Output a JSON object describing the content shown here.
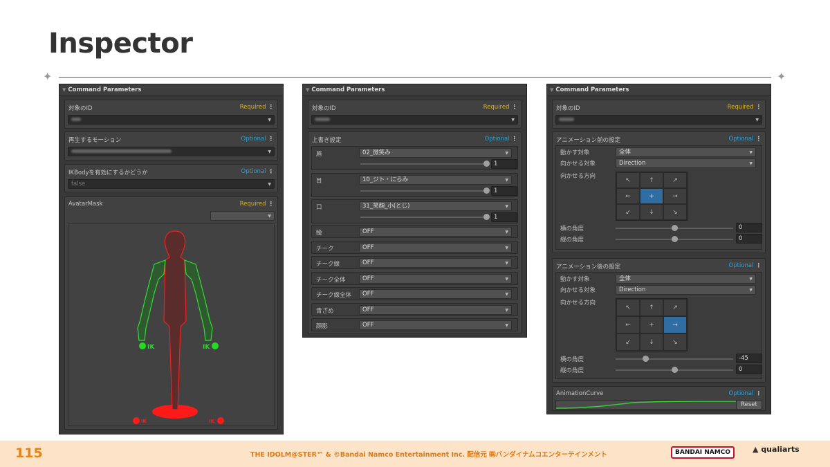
{
  "slide": {
    "title": "Inspector",
    "page_number": "115",
    "copyright": "THE IDOLM@STER™ & ©Bandai Namco Entertainment Inc. 配信元 ㈱バンダイナムコエンターテインメント",
    "logo_bandai": "BANDAI NAMCO",
    "logo_qualiarts": "qualiarts"
  },
  "left": {
    "header": "Command Parameters",
    "fields": [
      {
        "label": "対象のID",
        "tag": "Required"
      },
      {
        "label": "再生するモーション",
        "tag": "Optional"
      },
      {
        "label": "IKBodyを有効にするかどうか",
        "tag": "Optional",
        "value": "false"
      },
      {
        "label": "AvatarMask",
        "tag": "Required"
      }
    ],
    "ik_labels": {
      "left_hand": "IK",
      "right_hand": "IK",
      "left_foot": "IK",
      "right_foot": "IK"
    }
  },
  "middle": {
    "header": "Command Parameters",
    "target": {
      "label": "対象のID",
      "tag": "Required"
    },
    "override": {
      "label": "上書き設定",
      "tag": "Optional",
      "sliders": [
        {
          "label": "眉",
          "value": "02_微笑み",
          "weight": "1"
        },
        {
          "label": "目",
          "value": "10_ジト・にらみ",
          "weight": "1"
        },
        {
          "label": "口",
          "value": "31_笑顔_小(とじ)",
          "weight": "1"
        }
      ],
      "toggles": [
        {
          "label": "瞳",
          "value": "OFF"
        },
        {
          "label": "チーク",
          "value": "OFF"
        },
        {
          "label": "チーク線",
          "value": "OFF"
        },
        {
          "label": "チーク全体",
          "value": "OFF"
        },
        {
          "label": "チーク線全体",
          "value": "OFF"
        },
        {
          "label": "青ざめ",
          "value": "OFF"
        },
        {
          "label": "顔影",
          "value": "OFF"
        }
      ]
    }
  },
  "right": {
    "header": "Command Parameters",
    "target": {
      "label": "対象のID",
      "tag": "Required"
    },
    "before": {
      "label": "アニメーション前の設定",
      "tag": "Optional",
      "move_target_label": "動かす対象",
      "move_target": "全体",
      "face_target_label": "向かせる対象",
      "face_target": "Direction",
      "direction_label": "向かせる方向",
      "selected": "center",
      "h_angle_label": "横の角度",
      "h_angle": "0",
      "v_angle_label": "縦の角度",
      "v_angle": "0"
    },
    "after": {
      "label": "アニメーション後の設定",
      "tag": "Optional",
      "move_target_label": "動かす対象",
      "move_target": "全体",
      "face_target_label": "向かせる対象",
      "face_target": "Direction",
      "direction_label": "向かせる方向",
      "selected": "right",
      "h_angle_label": "横の角度",
      "h_angle": "-45",
      "v_angle_label": "縦の角度",
      "v_angle": "0"
    },
    "curve": {
      "label": "AnimationCurve",
      "tag": "Optional",
      "reset": "Reset"
    },
    "arrows": [
      "↖",
      "↑",
      "↗",
      "←",
      "+",
      "→",
      "↙",
      "↓",
      "↘"
    ]
  },
  "colors": {
    "required": "#d9b12a",
    "optional": "#29a3d6",
    "selected_cell": "#2f6da3",
    "mask_on": "#22dd22",
    "mask_off": "#ff1a1a",
    "accent": "#e8820f"
  }
}
